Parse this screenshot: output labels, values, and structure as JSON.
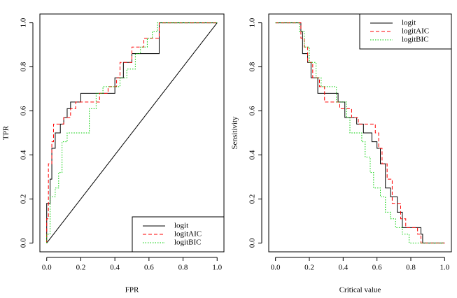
{
  "chart_data": [
    {
      "type": "line",
      "xlabel": "FPR",
      "ylabel": "TPR",
      "xlim": [
        -0.04,
        1.04
      ],
      "ylim": [
        -0.04,
        1.04
      ],
      "xticks": [
        {
          "value": 0,
          "label": "0.0"
        },
        {
          "value": 0.2,
          "label": "0.2"
        },
        {
          "value": 0.4,
          "label": "0.4"
        },
        {
          "value": 0.6,
          "label": "0.6"
        },
        {
          "value": 0.8,
          "label": "0.8"
        },
        {
          "value": 1,
          "label": "1.0"
        }
      ],
      "yticks": [
        {
          "value": 0,
          "label": "0.0"
        },
        {
          "value": 0.2,
          "label": "0.2"
        },
        {
          "value": 0.4,
          "label": "0.4"
        },
        {
          "value": 0.6,
          "label": "0.6"
        },
        {
          "value": 0.8,
          "label": "0.8"
        },
        {
          "value": 1,
          "label": "1.0"
        }
      ],
      "legend": "bottomright",
      "reference_line": {
        "x": [
          0,
          1
        ],
        "y": [
          0,
          1
        ],
        "color": "#000000"
      },
      "series": [
        {
          "name": "logit",
          "color": "#000000",
          "style": "solid",
          "x": [
            0,
            0,
            0.02,
            0.02,
            0.03,
            0.03,
            0.05,
            0.05,
            0.08,
            0.08,
            0.1,
            0.1,
            0.12,
            0.12,
            0.14,
            0.14,
            0.2,
            0.2,
            0.4,
            0.4,
            0.45,
            0.45,
            0.5,
            0.5,
            0.66,
            0.66,
            1
          ],
          "y": [
            0,
            0.18,
            0.18,
            0.29,
            0.29,
            0.43,
            0.43,
            0.5,
            0.5,
            0.54,
            0.54,
            0.57,
            0.57,
            0.61,
            0.61,
            0.64,
            0.64,
            0.68,
            0.68,
            0.75,
            0.75,
            0.82,
            0.82,
            0.86,
            0.86,
            1,
            1
          ]
        },
        {
          "name": "logitAIC",
          "color": "#ff0000",
          "style": "dashed",
          "x": [
            0,
            0,
            0.01,
            0.01,
            0.03,
            0.03,
            0.04,
            0.04,
            0.1,
            0.1,
            0.14,
            0.14,
            0.17,
            0.17,
            0.31,
            0.31,
            0.36,
            0.36,
            0.41,
            0.41,
            0.43,
            0.43,
            0.5,
            0.5,
            0.57,
            0.57,
            0.66,
            0.66,
            1
          ],
          "y": [
            0,
            0.11,
            0.11,
            0.36,
            0.36,
            0.46,
            0.46,
            0.54,
            0.54,
            0.57,
            0.57,
            0.61,
            0.61,
            0.64,
            0.64,
            0.68,
            0.68,
            0.71,
            0.71,
            0.75,
            0.75,
            0.82,
            0.82,
            0.89,
            0.89,
            0.93,
            0.93,
            1,
            1
          ]
        },
        {
          "name": "logitBIC",
          "color": "#00cd00",
          "style": "dotted",
          "x": [
            0,
            0,
            0.02,
            0.02,
            0.05,
            0.05,
            0.07,
            0.07,
            0.09,
            0.09,
            0.12,
            0.12,
            0.25,
            0.25,
            0.29,
            0.29,
            0.33,
            0.33,
            0.43,
            0.43,
            0.47,
            0.47,
            0.52,
            0.52,
            0.55,
            0.55,
            0.59,
            0.59,
            0.62,
            0.62,
            0.65,
            0.65,
            1
          ],
          "y": [
            0,
            0.04,
            0.04,
            0.21,
            0.21,
            0.25,
            0.25,
            0.32,
            0.32,
            0.46,
            0.46,
            0.5,
            0.5,
            0.61,
            0.61,
            0.68,
            0.68,
            0.71,
            0.71,
            0.75,
            0.75,
            0.79,
            0.79,
            0.86,
            0.86,
            0.89,
            0.89,
            0.93,
            0.93,
            0.96,
            0.96,
            1,
            1
          ]
        }
      ]
    },
    {
      "type": "line",
      "xlabel": "Critical value",
      "ylabel": "Sensitivity",
      "xlim": [
        -0.04,
        1.04
      ],
      "ylim": [
        -0.04,
        1.04
      ],
      "xticks": [
        {
          "value": 0,
          "label": "0.0"
        },
        {
          "value": 0.2,
          "label": "0.2"
        },
        {
          "value": 0.4,
          "label": "0.4"
        },
        {
          "value": 0.6,
          "label": "0.6"
        },
        {
          "value": 0.8,
          "label": "0.8"
        },
        {
          "value": 1,
          "label": "1.0"
        }
      ],
      "yticks": [
        {
          "value": 0,
          "label": "0.0"
        },
        {
          "value": 0.2,
          "label": "0.2"
        },
        {
          "value": 0.4,
          "label": "0.4"
        },
        {
          "value": 0.6,
          "label": "0.6"
        },
        {
          "value": 0.8,
          "label": "0.8"
        },
        {
          "value": 1,
          "label": "1.0"
        }
      ],
      "legend": "topright",
      "series": [
        {
          "name": "logit",
          "color": "#000000",
          "style": "solid",
          "x": [
            0,
            0.15,
            0.15,
            0.16,
            0.16,
            0.19,
            0.19,
            0.21,
            0.21,
            0.25,
            0.25,
            0.37,
            0.37,
            0.41,
            0.41,
            0.48,
            0.48,
            0.52,
            0.52,
            0.57,
            0.57,
            0.6,
            0.6,
            0.62,
            0.62,
            0.65,
            0.65,
            0.68,
            0.68,
            0.72,
            0.72,
            0.75,
            0.75,
            0.86,
            0.86,
            0.87,
            0.87,
            1
          ],
          "y": [
            1,
            1,
            0.96,
            0.96,
            0.86,
            0.86,
            0.82,
            0.82,
            0.75,
            0.75,
            0.68,
            0.68,
            0.64,
            0.64,
            0.57,
            0.57,
            0.54,
            0.54,
            0.5,
            0.5,
            0.46,
            0.46,
            0.43,
            0.43,
            0.36,
            0.36,
            0.25,
            0.25,
            0.21,
            0.21,
            0.14,
            0.14,
            0.07,
            0.07,
            0.04,
            0.04,
            0,
            0
          ]
        },
        {
          "name": "logitAIC",
          "color": "#ff0000",
          "style": "dashed",
          "x": [
            0,
            0.15,
            0.15,
            0.17,
            0.17,
            0.19,
            0.19,
            0.22,
            0.22,
            0.26,
            0.26,
            0.29,
            0.29,
            0.38,
            0.38,
            0.45,
            0.45,
            0.49,
            0.49,
            0.59,
            0.59,
            0.61,
            0.61,
            0.63,
            0.63,
            0.66,
            0.66,
            0.69,
            0.69,
            0.74,
            0.74,
            0.77,
            0.77,
            0.84,
            0.84,
            0.86,
            0.86,
            1
          ],
          "y": [
            1,
            1,
            0.93,
            0.93,
            0.89,
            0.89,
            0.82,
            0.82,
            0.75,
            0.75,
            0.71,
            0.71,
            0.64,
            0.64,
            0.61,
            0.61,
            0.57,
            0.57,
            0.54,
            0.54,
            0.5,
            0.5,
            0.43,
            0.43,
            0.36,
            0.36,
            0.29,
            0.29,
            0.18,
            0.18,
            0.11,
            0.11,
            0.07,
            0.07,
            0.04,
            0.04,
            0,
            0
          ]
        },
        {
          "name": "logitBIC",
          "color": "#00cd00",
          "style": "dotted",
          "x": [
            0,
            0.14,
            0.14,
            0.17,
            0.17,
            0.2,
            0.2,
            0.24,
            0.24,
            0.27,
            0.27,
            0.36,
            0.36,
            0.42,
            0.42,
            0.44,
            0.44,
            0.51,
            0.51,
            0.53,
            0.53,
            0.56,
            0.56,
            0.58,
            0.58,
            0.62,
            0.62,
            0.65,
            0.65,
            0.68,
            0.68,
            0.71,
            0.71,
            0.75,
            0.75,
            0.79,
            0.79,
            1
          ],
          "y": [
            1,
            1,
            0.96,
            0.96,
            0.89,
            0.89,
            0.82,
            0.82,
            0.75,
            0.75,
            0.71,
            0.71,
            0.64,
            0.64,
            0.57,
            0.57,
            0.5,
            0.5,
            0.46,
            0.46,
            0.39,
            0.39,
            0.32,
            0.32,
            0.25,
            0.25,
            0.21,
            0.21,
            0.14,
            0.14,
            0.11,
            0.11,
            0.07,
            0.07,
            0.04,
            0.04,
            0,
            0
          ]
        }
      ]
    }
  ]
}
